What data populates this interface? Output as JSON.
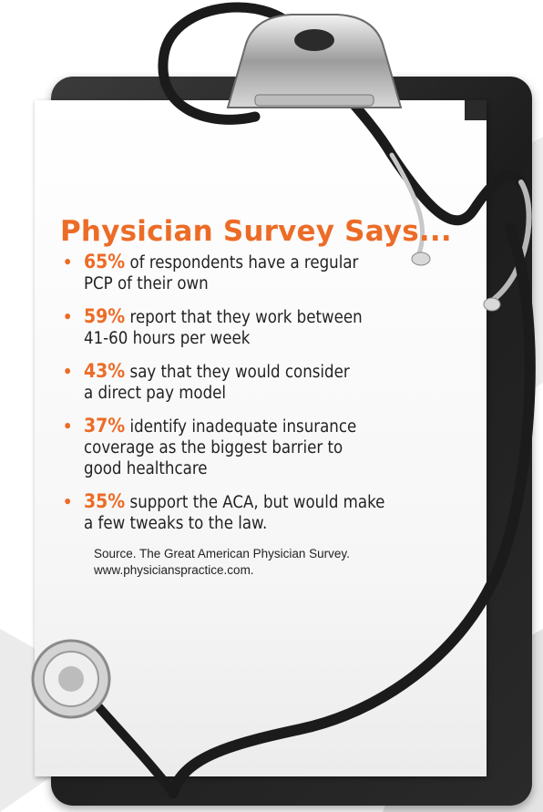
{
  "title": "Physician Survey Says...",
  "points": [
    {
      "percent": "65%",
      "text": " of respondents have a regular",
      "text2": "PCP of their own"
    },
    {
      "percent": "59%",
      "text": " report that they work between",
      "text2": "41-60 hours per week"
    },
    {
      "percent": "43%",
      "text": " say that they would consider",
      "text2": "a direct pay model"
    },
    {
      "percent": "37%",
      "text": " identify inadequate insurance",
      "text2": "coverage as the biggest barrier to",
      "text3": "good healthcare"
    },
    {
      "percent": "35%",
      "text": " support the ACA, but would make",
      "text2": "a few tweaks to the law."
    }
  ],
  "source": {
    "line1": "Source. The Great American Physician Survey.",
    "line2": "www.physicianspractice.com."
  },
  "colors": {
    "accent": "#ec6c27",
    "board": "#2a2a2a",
    "background_shape": "#e6e6e6"
  },
  "icons": [
    "stethoscope-icon",
    "clipboard-clip-icon"
  ]
}
